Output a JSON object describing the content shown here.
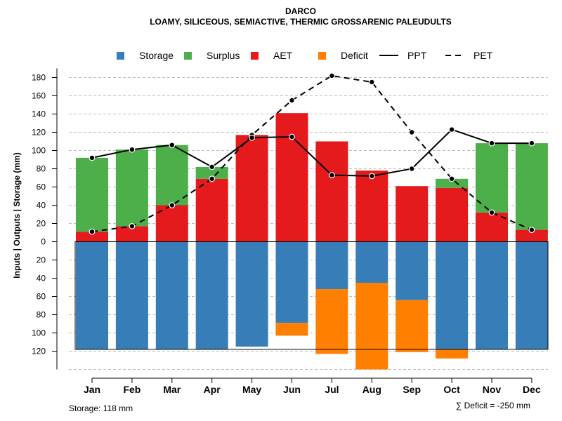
{
  "chart_data": {
    "type": "bar",
    "title": "DARCO",
    "subtitle": "LOAMY, SILICEOUS, SEMIACTIVE, THERMIC GROSSARENIC PALEUDULTS",
    "ylabel": "Inputs | Outputs | Storage    (mm)",
    "ylim": [
      -140,
      190
    ],
    "upper_ticks": [
      "0",
      "20",
      "40",
      "60",
      "80",
      "100",
      "120",
      "140",
      "160",
      "180"
    ],
    "lower_ticks": [
      "20",
      "40",
      "60",
      "80",
      "100",
      "120"
    ],
    "categories": [
      "Jan",
      "Feb",
      "Mar",
      "Apr",
      "May",
      "Jun",
      "Jul",
      "Aug",
      "Sep",
      "Oct",
      "Nov",
      "Dec"
    ],
    "series": [
      {
        "name": "AET",
        "color": "#E41A1C",
        "values": [
          11,
          17,
          40,
          69,
          117,
          141,
          110,
          78,
          61,
          59,
          32,
          13
        ]
      },
      {
        "name": "Surplus",
        "color": "#4DAF4A",
        "values": [
          81,
          84,
          66,
          13,
          0,
          0,
          0,
          0,
          0,
          10,
          76,
          95
        ]
      },
      {
        "name": "Storage",
        "color": "#377EB8",
        "values": [
          118,
          118,
          118,
          118,
          115,
          89,
          52,
          45,
          64,
          118,
          118,
          118
        ]
      },
      {
        "name": "Deficit",
        "color": "#FF7F00",
        "values": [
          0,
          0,
          0,
          0,
          0,
          14,
          71,
          95,
          57,
          10,
          0,
          0
        ]
      },
      {
        "name": "PPT",
        "style": "solid",
        "values": [
          92,
          101,
          106,
          82,
          114,
          115,
          73,
          72,
          80,
          123,
          108,
          108
        ]
      },
      {
        "name": "PET",
        "style": "dashed",
        "values": [
          11,
          17,
          40,
          69,
          117,
          155,
          182,
          175,
          120,
          69,
          32,
          13
        ]
      }
    ],
    "legend": [
      {
        "label": "Storage",
        "kind": "box",
        "color": "#377EB8"
      },
      {
        "label": "Surplus",
        "kind": "box",
        "color": "#4DAF4A"
      },
      {
        "label": "AET",
        "kind": "box",
        "color": "#E41A1C"
      },
      {
        "label": "Deficit",
        "kind": "box",
        "color": "#FF7F00"
      },
      {
        "label": "PPT",
        "kind": "solid"
      },
      {
        "label": "PET",
        "kind": "dashed"
      }
    ],
    "storage_capacity": 118,
    "footer_left": "Storage: 118 mm",
    "footer_right": "∑ Deficit = -250 mm",
    "grid": true
  }
}
